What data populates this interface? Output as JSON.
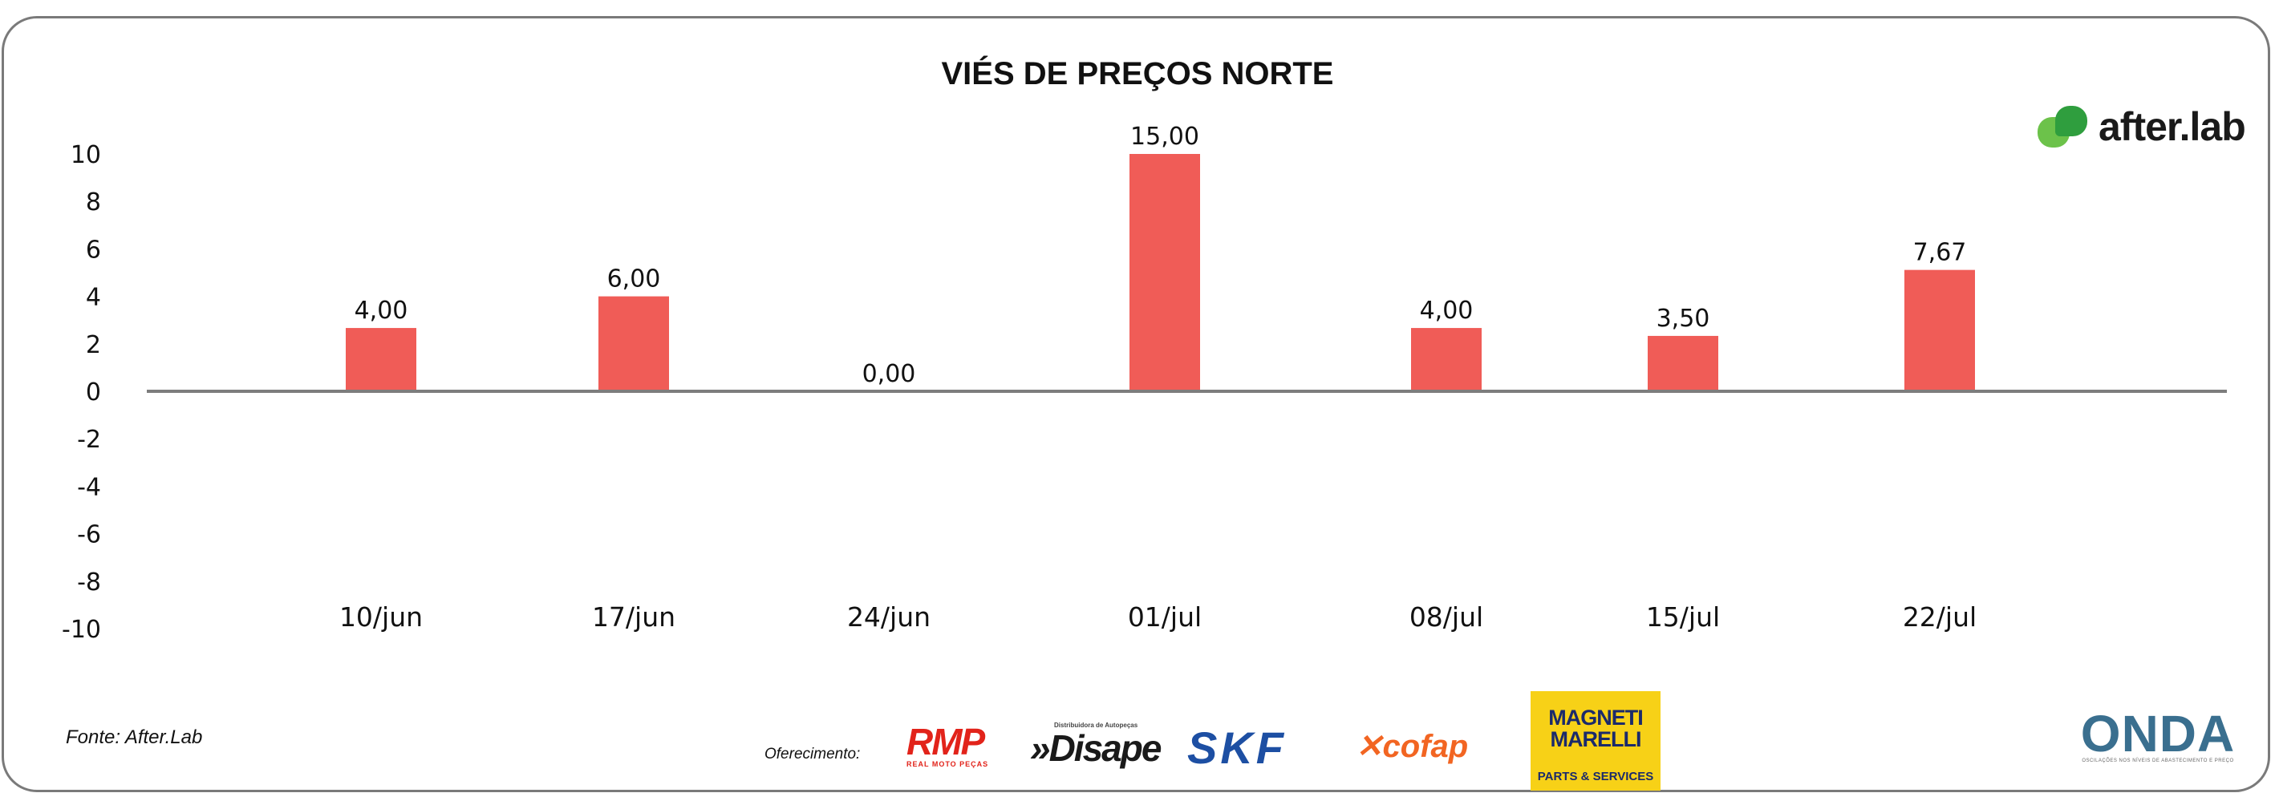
{
  "source_label": "Fonte: After.Lab",
  "sponsor_label": "Oferecimento:",
  "brands": {
    "after_lab": "after.lab",
    "rmp": "RMP",
    "rmp_sub": "REAL MOTO PEÇAS",
    "disape": "»Disape",
    "disape_sub": "Distribuidora de Autopeças",
    "skf": "SKF",
    "cofap": "cofap",
    "magneti_line1": "MAGNETI",
    "magneti_line2": "MARELLI",
    "magneti_sub": "PARTS & SERVICES",
    "onda": "ONDA",
    "onda_sub": "OSCILAÇÕES NOS NÍVEIS DE ABASTECIMENTO E PREÇO"
  },
  "colors": {
    "bar": "#f05c57",
    "axis": "#7d7d7d",
    "frame": "#7a7a7a"
  },
  "chart_data": {
    "type": "bar",
    "title": "VIÉS DE PREÇOS NORTE",
    "xlabel": "",
    "ylabel": "",
    "categories": [
      "10/jun",
      "17/jun",
      "24/jun",
      "01/jul",
      "08/jul",
      "15/jul",
      "22/jul"
    ],
    "values": [
      4.0,
      6.0,
      0.0,
      15.0,
      4.0,
      3.5,
      7.67
    ],
    "value_labels": [
      "4,00",
      "6,00",
      "0,00",
      "15,00",
      "4,00",
      "3,50",
      "7,67"
    ],
    "ylim": [
      -10,
      10
    ],
    "yticks": [
      10,
      8,
      6,
      4,
      2,
      0,
      -2,
      -4,
      -6,
      -8,
      -10
    ],
    "grid": false,
    "legend": "none"
  }
}
